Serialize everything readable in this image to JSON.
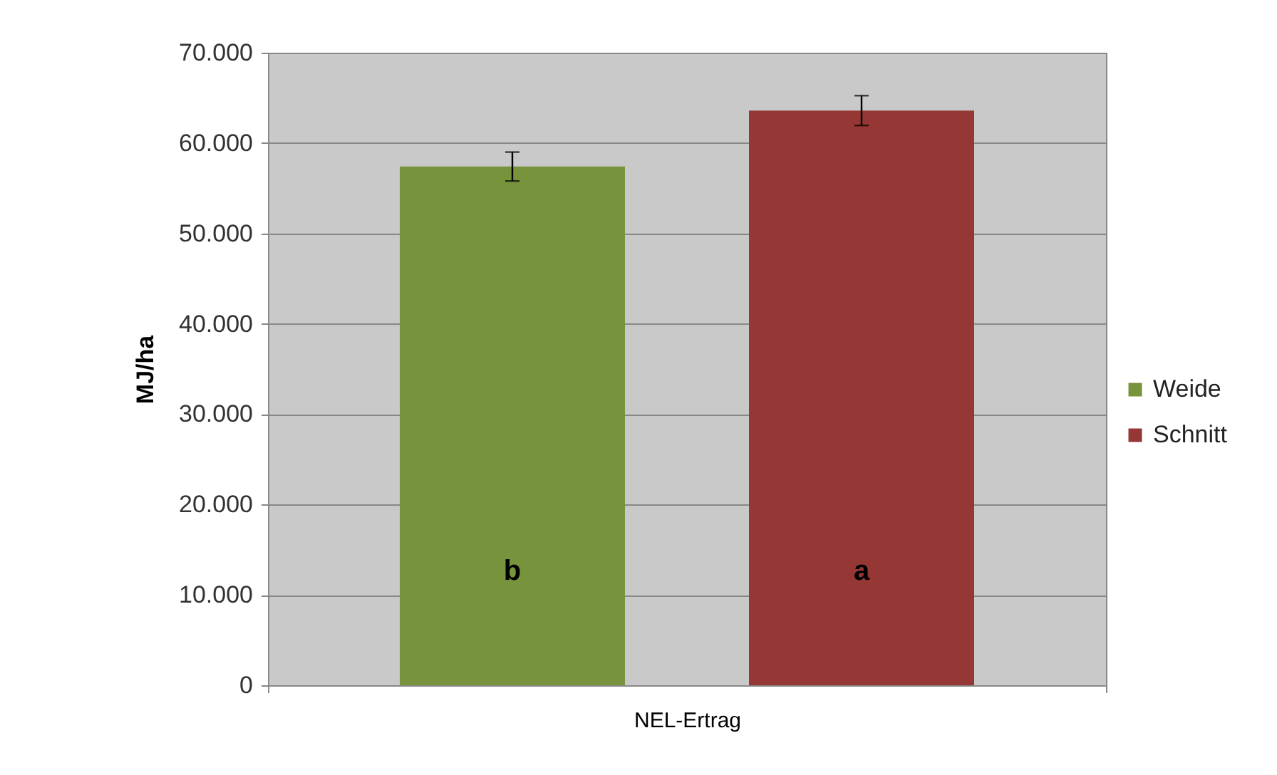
{
  "chart_data": {
    "type": "bar",
    "ylabel": "MJ/ha",
    "categories": [
      "NEL-Ertrag"
    ],
    "series": [
      {
        "name": "Weide",
        "color": "#77933c",
        "values": [
          57400
        ],
        "errors": [
          1600
        ]
      },
      {
        "name": "Schnitt",
        "color": "#953735",
        "values": [
          63600
        ],
        "errors": [
          1650
        ]
      }
    ],
    "ylim": [
      0,
      70000
    ],
    "yticks": [
      {
        "value": 0,
        "label": "0"
      },
      {
        "value": 10000,
        "label": "10.000"
      },
      {
        "value": 20000,
        "label": "20.000"
      },
      {
        "value": 30000,
        "label": "30.000"
      },
      {
        "value": 40000,
        "label": "40.000"
      },
      {
        "value": 50000,
        "label": "50.000"
      },
      {
        "value": 60000,
        "label": "60.000"
      },
      {
        "value": 70000,
        "label": "70.000"
      }
    ],
    "annotations": [
      "b",
      "a"
    ],
    "grid": "y",
    "legend": "right"
  }
}
